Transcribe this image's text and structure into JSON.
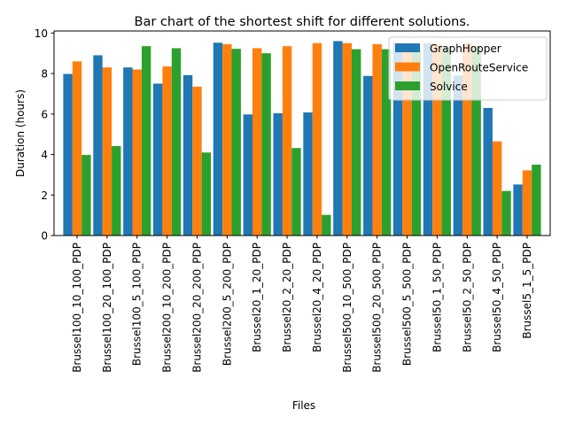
{
  "chart_data": {
    "type": "bar",
    "title": "Bar chart of the shortest shift for different solutions.",
    "xlabel": "Files",
    "ylabel": "Duration (hours)",
    "ylim": [
      0,
      10.1
    ],
    "yticks": [
      0,
      2,
      4,
      6,
      8,
      10
    ],
    "grid": false,
    "legend_position": "upper right",
    "categories": [
      "Brussel100_10_100_PDP",
      "Brussel100_20_100_PDP",
      "Brussel100_5_100_PDP",
      "Brussel200_10_200_PDP",
      "Brussel200_20_200_PDP",
      "Brussel200_5_200_PDP",
      "Brussel20_1_20_PDP",
      "Brussel20_2_20_PDP",
      "Brussel20_4_20_PDP",
      "Brussel500_10_500_PDP",
      "Brussel500_20_500_PDP",
      "Brussel500_5_500_PDP",
      "Brussel50_1_50_PDP",
      "Brussel50_2_50_PDP",
      "Brussel50_4_50_PDP",
      "Brussel5_1_5_PDP"
    ],
    "series": [
      {
        "name": "GraphHopper",
        "color": "#1f77b4",
        "values": [
          7.98,
          8.9,
          8.3,
          7.5,
          7.92,
          9.52,
          5.98,
          6.04,
          6.08,
          9.6,
          7.88,
          9.5,
          9.5,
          7.9,
          6.3,
          2.52
        ]
      },
      {
        "name": "OpenRouteService",
        "color": "#ff7f0e",
        "values": [
          8.6,
          8.3,
          8.2,
          8.35,
          7.35,
          9.45,
          9.25,
          9.35,
          9.5,
          9.5,
          9.45,
          9.4,
          9.45,
          9.5,
          4.65,
          3.22
        ]
      },
      {
        "name": "Solvice",
        "color": "#2ca02c",
        "values": [
          3.98,
          4.42,
          9.35,
          9.25,
          4.1,
          9.22,
          9.0,
          4.32,
          1.02,
          9.2,
          9.2,
          9.25,
          9.3,
          9.3,
          2.2,
          3.5
        ]
      }
    ]
  }
}
